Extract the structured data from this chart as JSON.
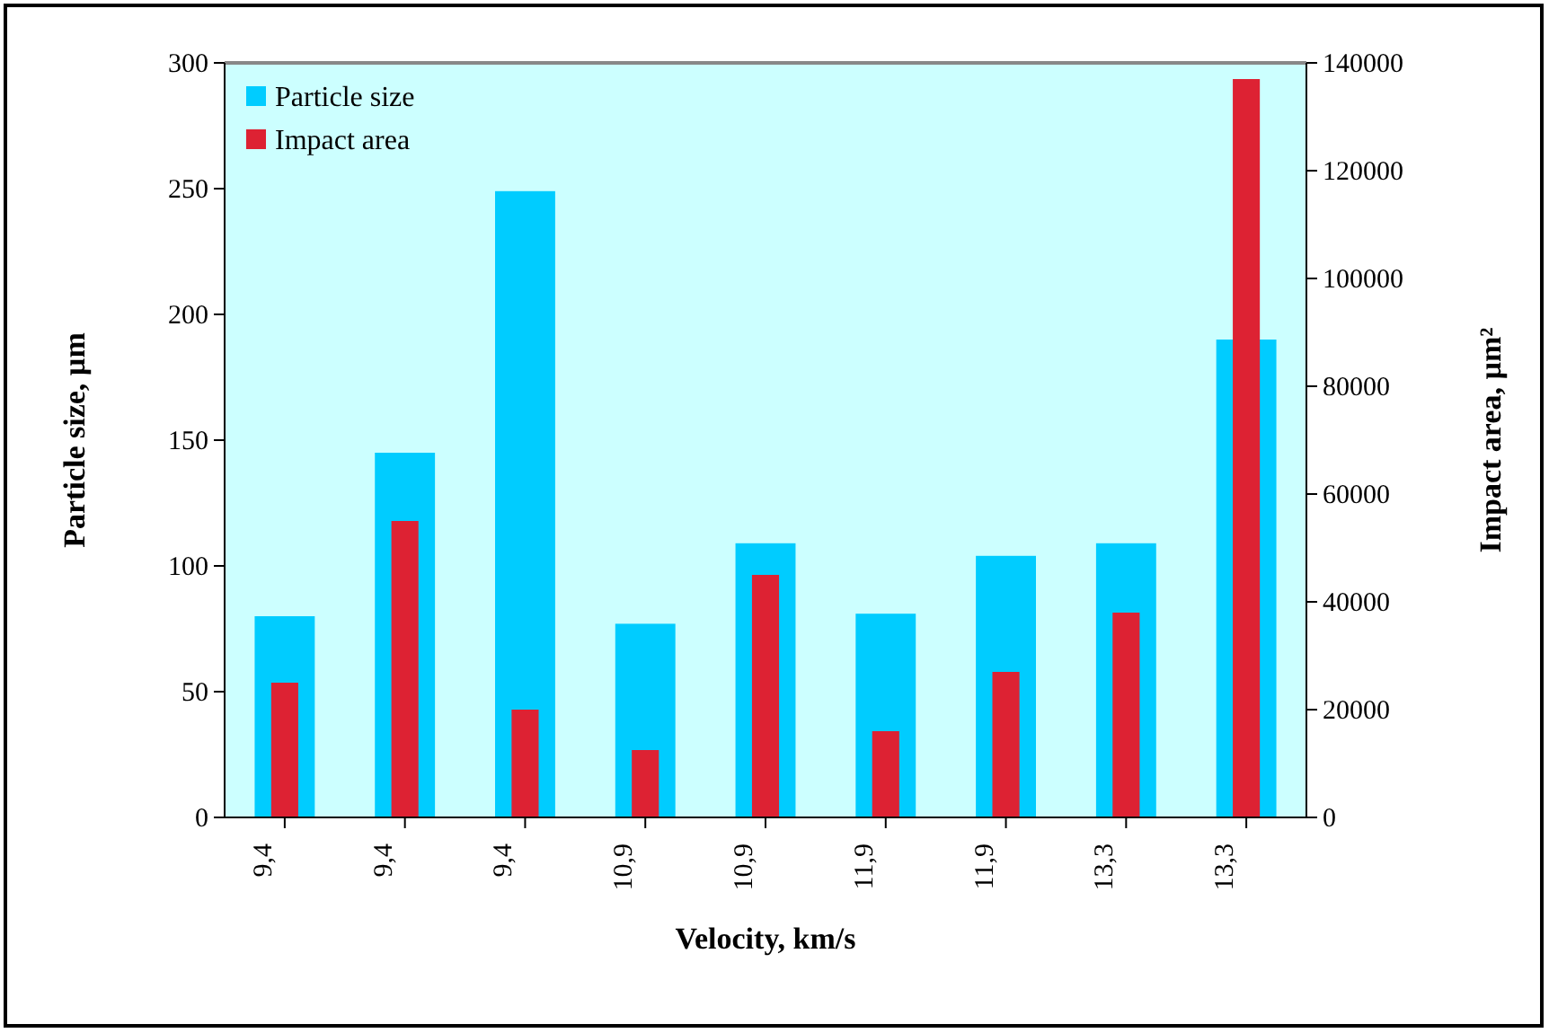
{
  "chart_data": {
    "type": "bar",
    "xlabel": "Velocity, km/s",
    "ylabel": "Particle size, µm",
    "y2label": "Impact area, µm²",
    "categories": [
      "9,4",
      "9,4",
      "9,4",
      "10,9",
      "10,9",
      "11,9",
      "11,9",
      "13,3",
      "13,3"
    ],
    "series": [
      {
        "name": "Particle size",
        "color": "#00ccff",
        "values": [
          80,
          145,
          249,
          77,
          109,
          81,
          104,
          109,
          190
        ]
      },
      {
        "name": "Impact area",
        "color": "#dd2233",
        "axis": "y2",
        "values": [
          25000,
          55000,
          20000,
          12500,
          45000,
          16000,
          27000,
          38000,
          137000
        ]
      }
    ],
    "ylim": [
      0,
      300
    ],
    "yticks": [
      0,
      50,
      100,
      150,
      200,
      250,
      300
    ],
    "y2lim": [
      0,
      140000
    ],
    "y2ticks": [
      0,
      20000,
      40000,
      60000,
      80000,
      100000,
      120000,
      140000
    ],
    "grid": false,
    "legend": "top left"
  }
}
